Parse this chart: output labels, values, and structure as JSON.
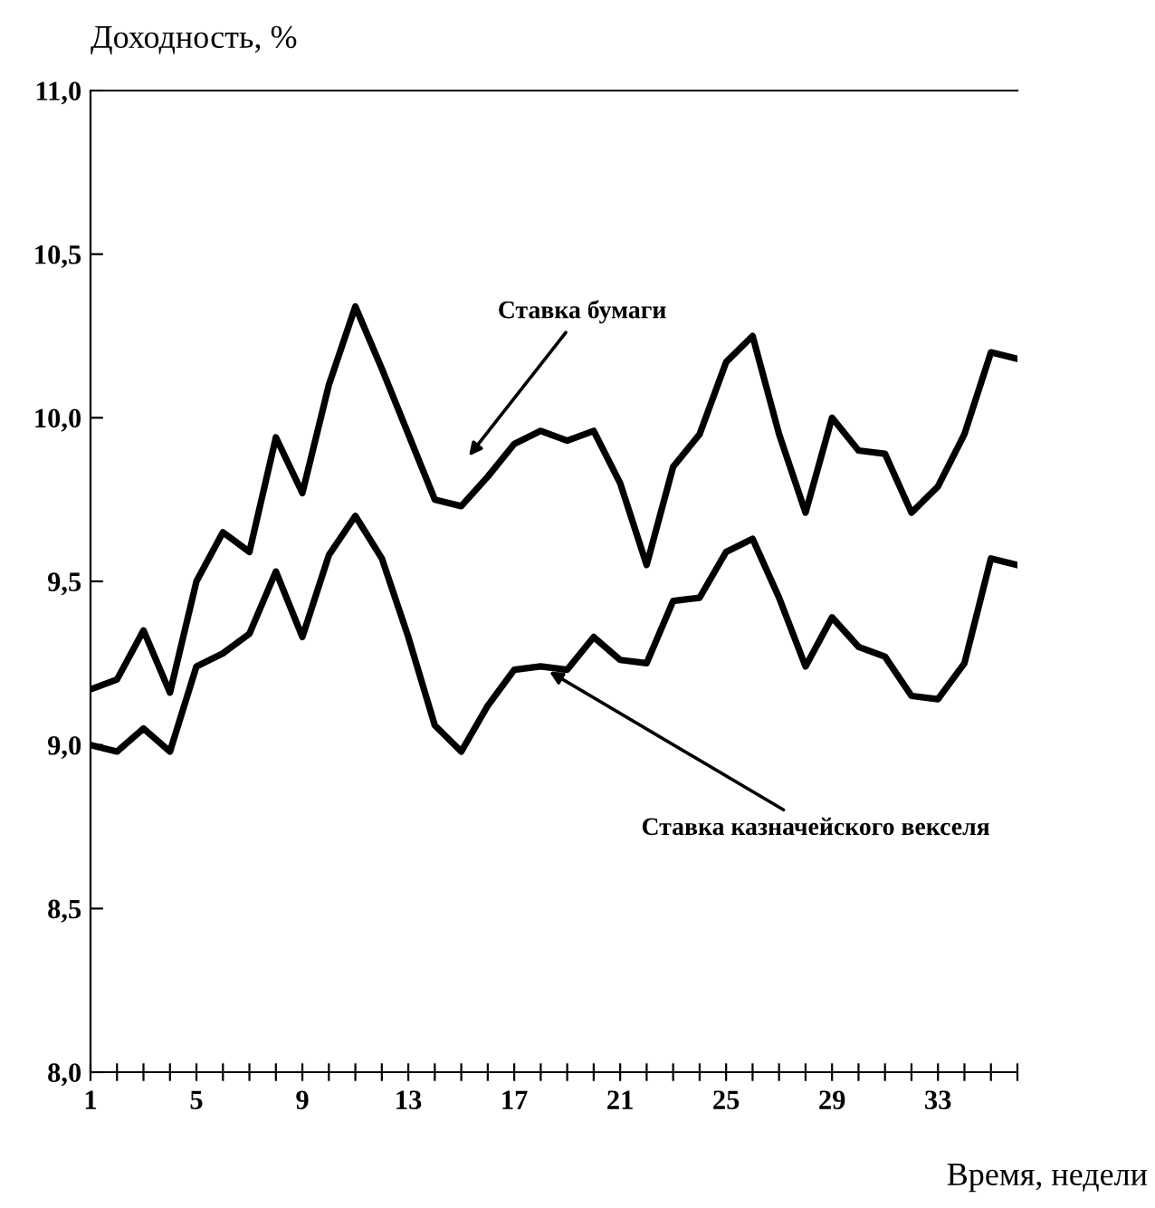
{
  "chart_data": {
    "type": "line",
    "ylabel": "Доходность, %",
    "xlabel": "Время, недели",
    "x": [
      1,
      2,
      3,
      4,
      5,
      6,
      7,
      8,
      9,
      10,
      11,
      12,
      13,
      14,
      15,
      16,
      17,
      18,
      19,
      20,
      21,
      22,
      23,
      24,
      25,
      26,
      27,
      28,
      29,
      30,
      31,
      32,
      33,
      34,
      35,
      36
    ],
    "series": [
      {
        "name": "Ставка бумаги",
        "color": "#000000",
        "values": [
          9.17,
          9.2,
          9.35,
          9.16,
          9.5,
          9.65,
          9.59,
          9.94,
          9.77,
          10.1,
          10.34,
          10.15,
          9.95,
          9.75,
          9.73,
          9.82,
          9.92,
          9.96,
          9.93,
          9.96,
          9.8,
          9.55,
          9.85,
          9.95,
          10.17,
          10.25,
          9.95,
          9.71,
          10.0,
          9.9,
          9.89,
          9.71,
          9.79,
          9.95,
          10.2,
          10.18
        ]
      },
      {
        "name": "Ставка казначейского векселя",
        "color": "#000000",
        "values": [
          9.0,
          8.98,
          9.05,
          8.98,
          9.24,
          9.28,
          9.34,
          9.53,
          9.33,
          9.58,
          9.7,
          9.57,
          9.33,
          9.06,
          8.98,
          9.12,
          9.23,
          9.24,
          9.23,
          9.33,
          9.26,
          9.25,
          9.44,
          9.45,
          9.59,
          9.63,
          9.45,
          9.24,
          9.39,
          9.3,
          9.27,
          9.15,
          9.14,
          9.25,
          9.57,
          9.55
        ]
      }
    ],
    "xlim": [
      1,
      36
    ],
    "ylim": [
      8.0,
      11.0
    ],
    "xticks": [
      1,
      {
        "value": 2,
        "label": null
      },
      {
        "value": 3,
        "label": null
      },
      {
        "value": 4,
        "label": null
      },
      5,
      {
        "value": 6,
        "label": null
      },
      {
        "value": 7,
        "label": null
      },
      {
        "value": 8,
        "label": null
      },
      9,
      {
        "value": 10,
        "label": null
      },
      {
        "value": 11,
        "label": null
      },
      {
        "value": 12,
        "label": null
      },
      13,
      {
        "value": 14,
        "label": null
      },
      {
        "value": 15,
        "label": null
      },
      {
        "value": 16,
        "label": null
      },
      17,
      {
        "value": 18,
        "label": null
      },
      {
        "value": 19,
        "label": null
      },
      {
        "value": 20,
        "label": null
      },
      21,
      {
        "value": 22,
        "label": null
      },
      {
        "value": 23,
        "label": null
      },
      {
        "value": 24,
        "label": null
      },
      25,
      {
        "value": 26,
        "label": null
      },
      {
        "value": 27,
        "label": null
      },
      {
        "value": 28,
        "label": null
      },
      29,
      {
        "value": 30,
        "label": null
      },
      {
        "value": 31,
        "label": null
      },
      {
        "value": 32,
        "label": null
      },
      33,
      {
        "value": 34,
        "label": null
      },
      {
        "value": 35,
        "label": null
      },
      {
        "value": 36,
        "label": null
      }
    ],
    "yticks": [
      {
        "value": 8.0,
        "label": "8,0"
      },
      {
        "value": 8.5,
        "label": "8,5"
      },
      {
        "value": 9.0,
        "label": "9,0"
      },
      {
        "value": 9.5,
        "label": "9,5"
      },
      {
        "value": 10.0,
        "label": "10,0"
      },
      {
        "value": 10.5,
        "label": "10,5"
      },
      {
        "value": 11.0,
        "label": "11,0"
      }
    ],
    "grid": false,
    "legend": false,
    "marker": "none",
    "line_style": "solid"
  }
}
